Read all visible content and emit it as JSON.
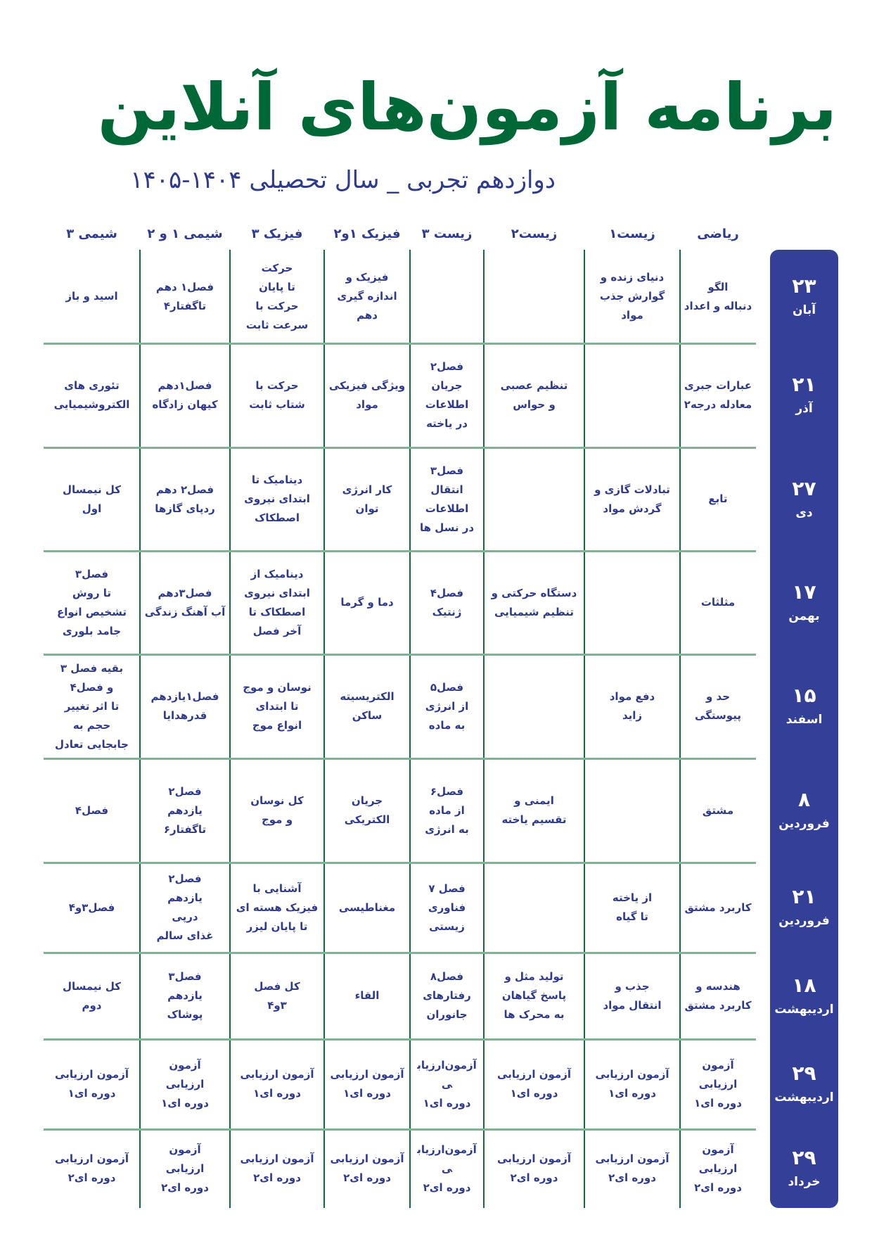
{
  "title": "برنامه آزمون‌های آنلاین",
  "subtitle": "دوازدهم تجربی _ سال تحصیلی ۱۴۰۴-۱۴۰۵",
  "colors": {
    "title": "#006837",
    "text": "#2e3a8c",
    "date_column": "#344097",
    "grid_vertical": "#0d6e3c",
    "grid_horizontal": "#7fb394"
  },
  "columns": [
    "ریاضی",
    "زیست۱",
    "زیست۲",
    "زیست ۳",
    "فیزیک ۱و۲",
    "فیزیک ۳",
    "شیمی ۱ و ۲",
    "شیمی ۳"
  ],
  "rows": [
    {
      "day": "۲۳",
      "month": "آبان",
      "cells": [
        "الگو\nدنباله و اعداد",
        "دنیای زنده و\nگوارش جذب\nمواد",
        "",
        "",
        "فیزیک و\nاندازه گیری\nدهم",
        "حرکت\nتا پایان\nحرکت با\nسرعت ثابت",
        "فصل۱ دهم\nتاگفتار۴",
        "اسید و باز"
      ]
    },
    {
      "day": "۲۱",
      "month": "آذر",
      "cells": [
        "عبارات جبری\nمعادله درجه۲",
        "",
        "تنظیم عصبی\nو حواس",
        "فصل۲\nجریان\nاطلاعات\nدر یاخته",
        "ویژگی فیزیکی\nمواد",
        "حرکت با\nشتاب ثابت",
        "فصل۱دهم\nکیهان زادگاه",
        "تئوری های\nالکتروشیمیایی"
      ]
    },
    {
      "day": "۲۷",
      "month": "دی",
      "cells": [
        "تابع",
        "تبادلات گازی و\nگردش مواد",
        "",
        "فصل۳\nانتقال\nاطلاعات\nدر نسل ها",
        "کار انرژی\nتوان",
        "دینامیک تا\nابتدای نیروی\nاصطکاک",
        "فصل۲ دهم\nردپای گازها",
        "کل نیمسال\nاول"
      ]
    },
    {
      "day": "۱۷",
      "month": "بهمن",
      "cells": [
        "مثلثات",
        "",
        "دستگاه حرکتی و\nتنظیم شیمیایی",
        "فصل۴\nژنتیک",
        "دما و گرما",
        "دینامیک از\nابتدای نیروی\nاصطکاک تا\nآخر فصل",
        "فصل۳دهم\nآب آهنگ زندگی",
        "فصل۳\nتا روش\nتشخیص انواع\nجامد بلوری"
      ]
    },
    {
      "day": "۱۵",
      "month": "اسفند",
      "cells": [
        "حد و\nپیوستگی",
        "دفع مواد\nزاید",
        "",
        "فصل۵\nاز انرژی\nبه ماده",
        "الکتریسیته\nساکن",
        "نوسان و موج\nتا ابتدای\nانواع موج",
        "فصل۱یازدهم\nقدرهدایا",
        "بقیه فصل ۳\nو فصل۴\nتا اثر تغییر\nحجم به\nجابجایی تعادل"
      ]
    },
    {
      "day": "۸",
      "month": "فروردین",
      "cells": [
        "مشتق",
        "",
        "ایمنی و\nتقسیم یاخته",
        "فصل۶\nاز ماده\nبه انرژی",
        "جریان\nالکتریکی",
        "کل نوسان\nو موج",
        "فصل۲\nیازدهم\nتاگفتار۶",
        "فصل۴"
      ]
    },
    {
      "day": "۲۱",
      "month": "فروردین",
      "cells": [
        "کاربرد مشتق",
        "از یاخته\nتا گیاه",
        "",
        "فصل ۷\nفناوری\nزیستی",
        "مغناطیسی",
        "آشنایی با\nفیزیک هسته ای\nتا پایان لیزر",
        "فصل۲\nیازدهم\nدرپی\nغذای سالم",
        "فصل۳و۴"
      ]
    },
    {
      "day": "۱۸",
      "month": "اردیبهشت",
      "cells": [
        "هندسه و\nکاربرد مشتق",
        "جذب و\nانتقال مواد",
        "تولید مثل و\nپاسخ گیاهان\nبه محرک ها",
        "فصل۸\nرفتارهای\nجانوران",
        "القاء",
        "کل فصل\n۳و۴",
        "فصل۳\nیازدهم\nپوشاک",
        "کل نیمسال\nدوم"
      ]
    },
    {
      "day": "۲۹",
      "month": "اردیبهشت",
      "cells": [
        "آزمون ارزیابی\nدوره ای۱",
        "آزمون ارزیابی\nدوره ای۱",
        "آزمون ارزیابی\nدوره ای۱",
        "آزمون‌ارزیابی\nدوره ای۱",
        "آزمون ارزیابی\nدوره ای۱",
        "آزمون ارزیابی\nدوره ای۱",
        "آزمون\nارزیابی\nدوره ای۱",
        "آزمون ارزیابی\nدوره ای۱"
      ]
    },
    {
      "day": "۲۹",
      "month": "خرداد",
      "cells": [
        "آزمون ارزیابی\nدوره ای۲",
        "آزمون ارزیابی\nدوره ای۲",
        "آزمون ارزیابی\nدوره ای۲",
        "آزمون‌ارزیابی\nدوره ای۲",
        "آزمون ارزیابی\nدوره ای۲",
        "آزمون ارزیابی\nدوره ای۲",
        "آزمون\nارزیابی\nدوره ای۲",
        "آزمون ارزیابی\nدوره ای۲"
      ]
    }
  ]
}
